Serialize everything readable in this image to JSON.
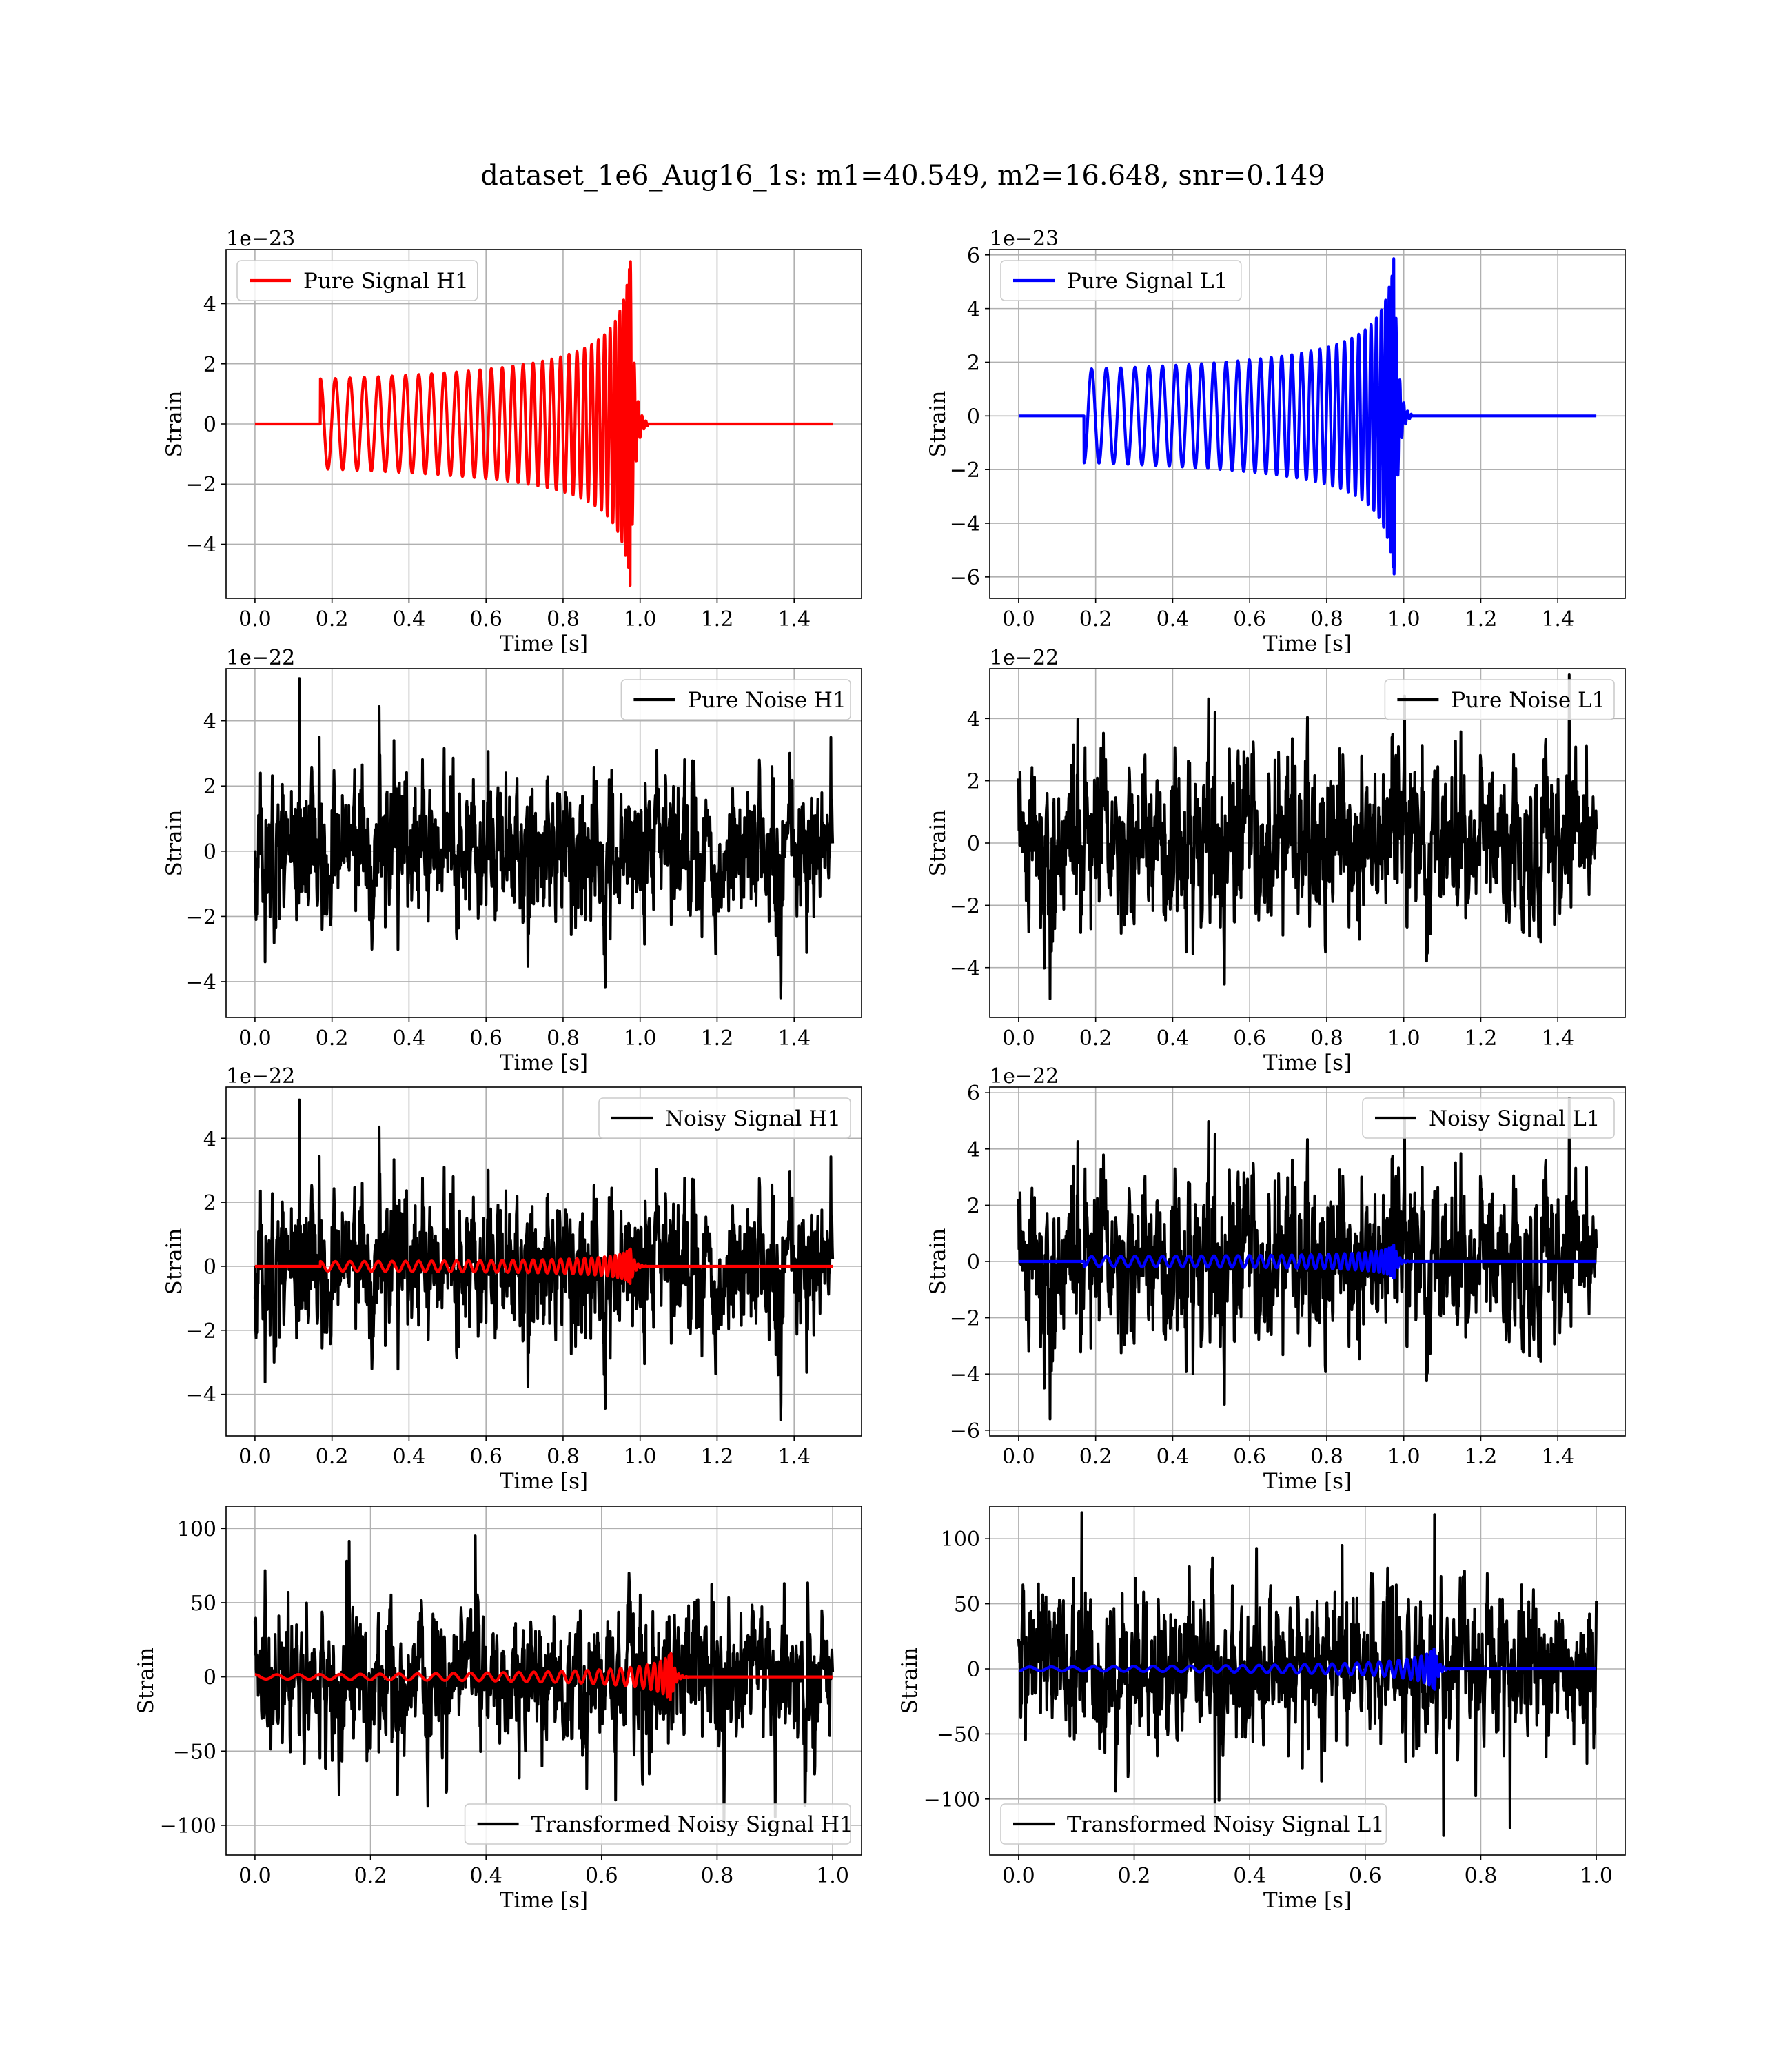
{
  "figure": {
    "title": "dataset_1e6_Aug16_1s: m1=40.549, m2=16.648, snr=0.149"
  },
  "chart_data": [
    {
      "id": "pure-signal-h1",
      "type": "line",
      "xlabel": "Time [s]",
      "ylabel": "Strain",
      "offset_text": "1e−23",
      "xlim": [
        -0.075,
        1.575
      ],
      "ylim": [
        -5.8,
        5.8
      ],
      "xticks": [
        0.0,
        0.2,
        0.4,
        0.6,
        0.8,
        1.0,
        1.2,
        1.4
      ],
      "xtick_labels": [
        "0.0",
        "0.2",
        "0.4",
        "0.6",
        "0.8",
        "1.0",
        "1.2",
        "1.4"
      ],
      "yticks": [
        -4,
        -2,
        0,
        2,
        4
      ],
      "ytick_labels": [
        "−4",
        "−2",
        "0",
        "2",
        "4"
      ],
      "grid": true,
      "legend_position": "upper left",
      "series": [
        {
          "name": "Pure Signal H1",
          "color": "#ff0000",
          "kind": "chirp",
          "t_start": 0.17,
          "t_merge": 0.975,
          "t_end": 1.5,
          "amp_start": 1.5,
          "amp_peak": 5.5,
          "cycles": 33,
          "sign": 1
        }
      ]
    },
    {
      "id": "pure-signal-l1",
      "type": "line",
      "xlabel": "Time [s]",
      "ylabel": "Strain",
      "offset_text": "1e−23",
      "xlim": [
        -0.075,
        1.575
      ],
      "ylim": [
        -6.8,
        6.2
      ],
      "xticks": [
        0.0,
        0.2,
        0.4,
        0.6,
        0.8,
        1.0,
        1.2,
        1.4
      ],
      "xtick_labels": [
        "0.0",
        "0.2",
        "0.4",
        "0.6",
        "0.8",
        "1.0",
        "1.2",
        "1.4"
      ],
      "yticks": [
        -6,
        -4,
        -2,
        0,
        2,
        4,
        6
      ],
      "ytick_labels": [
        "−6",
        "−4",
        "−2",
        "0",
        "2",
        "4",
        "6"
      ],
      "grid": true,
      "legend_position": "upper left",
      "series": [
        {
          "name": "Pure Signal L1",
          "color": "#0000ff",
          "kind": "chirp",
          "t_start": 0.17,
          "t_merge": 0.975,
          "t_end": 1.5,
          "amp_start": 1.75,
          "amp_peak": 6.0,
          "cycles": 33,
          "sign": -1
        }
      ]
    },
    {
      "id": "pure-noise-h1",
      "type": "line",
      "xlabel": "Time [s]",
      "ylabel": "Strain",
      "offset_text": "1e−22",
      "xlim": [
        -0.075,
        1.575
      ],
      "ylim": [
        -5.1,
        5.6
      ],
      "xticks": [
        0.0,
        0.2,
        0.4,
        0.6,
        0.8,
        1.0,
        1.2,
        1.4
      ],
      "xtick_labels": [
        "0.0",
        "0.2",
        "0.4",
        "0.6",
        "0.8",
        "1.0",
        "1.2",
        "1.4"
      ],
      "yticks": [
        -4,
        -2,
        0,
        2,
        4
      ],
      "ytick_labels": [
        "−4",
        "−2",
        "0",
        "2",
        "4"
      ],
      "grid": true,
      "legend_position": "upper right",
      "series": [
        {
          "name": "Pure Noise H1",
          "color": "#000000",
          "kind": "noise",
          "t_end": 1.5,
          "ymin": -4.5,
          "ymax": 5.3,
          "seed": 11
        }
      ]
    },
    {
      "id": "pure-noise-l1",
      "type": "line",
      "xlabel": "Time [s]",
      "ylabel": "Strain",
      "offset_text": "1e−22",
      "xlim": [
        -0.075,
        1.575
      ],
      "ylim": [
        -5.6,
        5.6
      ],
      "xticks": [
        0.0,
        0.2,
        0.4,
        0.6,
        0.8,
        1.0,
        1.2,
        1.4
      ],
      "xtick_labels": [
        "0.0",
        "0.2",
        "0.4",
        "0.6",
        "0.8",
        "1.0",
        "1.2",
        "1.4"
      ],
      "yticks": [
        -4,
        -2,
        0,
        2,
        4
      ],
      "ytick_labels": [
        "−4",
        "−2",
        "0",
        "2",
        "4"
      ],
      "grid": true,
      "legend_position": "upper right",
      "series": [
        {
          "name": "Pure Noise L1",
          "color": "#000000",
          "kind": "noise",
          "t_end": 1.5,
          "ymin": -5.0,
          "ymax": 5.4,
          "seed": 23
        }
      ]
    },
    {
      "id": "noisy-signal-h1",
      "type": "line",
      "xlabel": "Time [s]",
      "ylabel": "Strain",
      "offset_text": "1e−22",
      "xlim": [
        -0.075,
        1.575
      ],
      "ylim": [
        -5.3,
        5.6
      ],
      "xticks": [
        0.0,
        0.2,
        0.4,
        0.6,
        0.8,
        1.0,
        1.2,
        1.4
      ],
      "xtick_labels": [
        "0.0",
        "0.2",
        "0.4",
        "0.6",
        "0.8",
        "1.0",
        "1.2",
        "1.4"
      ],
      "yticks": [
        -4,
        -2,
        0,
        2,
        4
      ],
      "ytick_labels": [
        "−4",
        "−2",
        "0",
        "2",
        "4"
      ],
      "grid": true,
      "legend_position": "upper right",
      "series": [
        {
          "name": "Noisy Signal H1",
          "color": "#000000",
          "kind": "noise",
          "t_end": 1.5,
          "ymin": -4.8,
          "ymax": 5.2,
          "seed": 11
        },
        {
          "name": "",
          "color": "#ff0000",
          "kind": "chirp",
          "t_start": 0.17,
          "t_merge": 0.975,
          "t_end": 1.5,
          "amp_start": 0.15,
          "amp_peak": 0.55,
          "cycles": 33,
          "sign": 1
        }
      ]
    },
    {
      "id": "noisy-signal-l1",
      "type": "line",
      "xlabel": "Time [s]",
      "ylabel": "Strain",
      "offset_text": "1e−22",
      "xlim": [
        -0.075,
        1.575
      ],
      "ylim": [
        -6.2,
        6.2
      ],
      "xticks": [
        0.0,
        0.2,
        0.4,
        0.6,
        0.8,
        1.0,
        1.2,
        1.4
      ],
      "xtick_labels": [
        "0.0",
        "0.2",
        "0.4",
        "0.6",
        "0.8",
        "1.0",
        "1.2",
        "1.4"
      ],
      "yticks": [
        -6,
        -4,
        -2,
        0,
        2,
        4,
        6
      ],
      "ytick_labels": [
        "−6",
        "−4",
        "−2",
        "0",
        "2",
        "4",
        "6"
      ],
      "grid": true,
      "legend_position": "upper right",
      "series": [
        {
          "name": "Noisy Signal L1",
          "color": "#000000",
          "kind": "noise",
          "t_end": 1.5,
          "ymin": -5.6,
          "ymax": 5.8,
          "seed": 23
        },
        {
          "name": "",
          "color": "#0000ff",
          "kind": "chirp",
          "t_start": 0.17,
          "t_merge": 0.975,
          "t_end": 1.5,
          "amp_start": 0.18,
          "amp_peak": 0.6,
          "cycles": 33,
          "sign": -1
        }
      ]
    },
    {
      "id": "transformed-noisy-signal-h1",
      "type": "line",
      "xlabel": "Time [s]",
      "ylabel": "Strain",
      "offset_text": "",
      "xlim": [
        -0.05,
        1.05
      ],
      "ylim": [
        -120,
        115
      ],
      "xticks": [
        0.0,
        0.2,
        0.4,
        0.6,
        0.8,
        1.0
      ],
      "xtick_labels": [
        "0.0",
        "0.2",
        "0.4",
        "0.6",
        "0.8",
        "1.0"
      ],
      "yticks": [
        -100,
        -50,
        0,
        50,
        100
      ],
      "ytick_labels": [
        "−100",
        "−50",
        "0",
        "50",
        "100"
      ],
      "grid": true,
      "legend_position": "lower right",
      "series": [
        {
          "name": "Transformed Noisy Signal H1",
          "color": "#000000",
          "kind": "noise",
          "t_end": 1.0,
          "ymin": -104,
          "ymax": 95,
          "seed": 37
        },
        {
          "name": "",
          "color": "#ff0000",
          "kind": "chirp",
          "t_start": 0.0,
          "t_merge": 0.72,
          "t_end": 1.0,
          "amp_start": 1.5,
          "amp_peak": 16,
          "cycles": 30,
          "sign": 1
        }
      ]
    },
    {
      "id": "transformed-noisy-signal-l1",
      "type": "line",
      "xlabel": "Time [s]",
      "ylabel": "Strain",
      "offset_text": "",
      "xlim": [
        -0.05,
        1.05
      ],
      "ylim": [
        -143,
        125
      ],
      "xticks": [
        0.0,
        0.2,
        0.4,
        0.6,
        0.8,
        1.0
      ],
      "xtick_labels": [
        "0.0",
        "0.2",
        "0.4",
        "0.6",
        "0.8",
        "1.0"
      ],
      "yticks": [
        -100,
        -50,
        0,
        50,
        100
      ],
      "ytick_labels": [
        "−100",
        "−50",
        "0",
        "50",
        "100"
      ],
      "grid": true,
      "legend_position": "lower left",
      "series": [
        {
          "name": "Transformed Noisy Signal L1",
          "color": "#000000",
          "kind": "noise",
          "t_end": 1.0,
          "ymin": -128,
          "ymax": 120,
          "seed": 53
        },
        {
          "name": "",
          "color": "#0000ff",
          "kind": "chirp",
          "t_start": 0.0,
          "t_merge": 0.72,
          "t_end": 1.0,
          "amp_start": 1.5,
          "amp_peak": 16,
          "cycles": 30,
          "sign": -1
        }
      ]
    }
  ]
}
